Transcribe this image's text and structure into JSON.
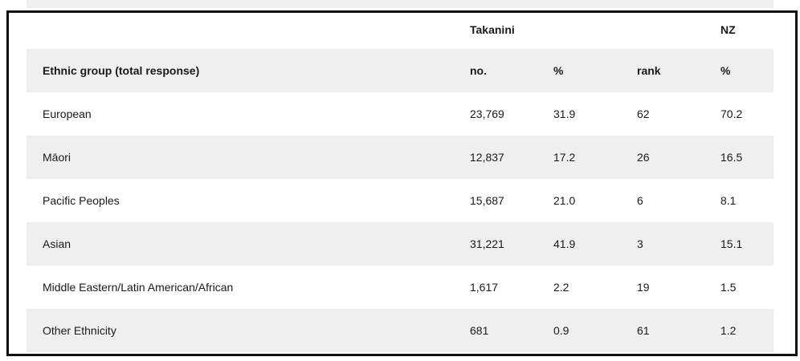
{
  "table": {
    "group_headers": [
      "",
      "Takanini",
      "",
      "",
      "NZ"
    ],
    "column_headers": [
      "Ethnic group (total response)",
      "no.",
      "%",
      "rank",
      "%"
    ],
    "rows": [
      [
        "European",
        "23,769",
        "31.9",
        "62",
        "70.2"
      ],
      [
        "Māori",
        "12,837",
        "17.2",
        "26",
        "16.5"
      ],
      [
        "Pacific Peoples",
        "15,687",
        "21.0",
        "6",
        "8.1"
      ],
      [
        "Asian",
        "31,221",
        "41.9",
        "3",
        "15.1"
      ],
      [
        "Middle Eastern/Latin American/African",
        "1,617",
        "2.2",
        "19",
        "1.5"
      ],
      [
        "Other Ethnicity",
        "681",
        "0.9",
        "61",
        "1.2"
      ]
    ]
  },
  "colors": {
    "stripe": "#efefef",
    "border": "#111111"
  }
}
